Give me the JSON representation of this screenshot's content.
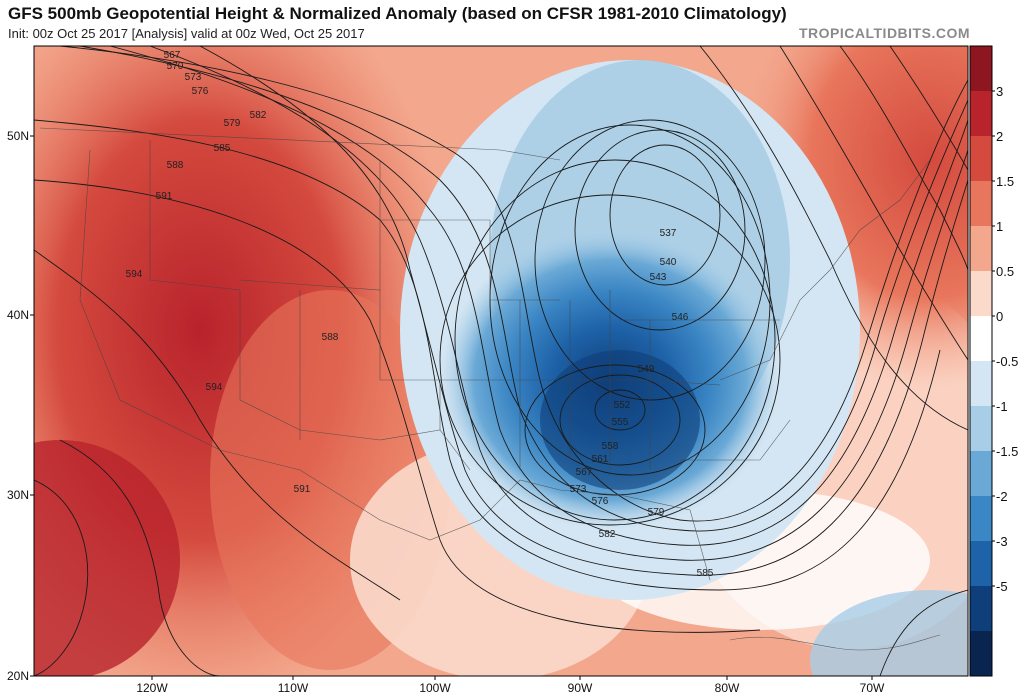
{
  "header": {
    "title": "GFS 500mb Geopotential Height & Normalized Anomaly (based on CFSR 1981-2010 Climatology)",
    "subtitle": "Init: 00z Oct 25 2017   [Analysis]   valid at 00z Wed, Oct 25 2017",
    "brand": "TROPICALTIDBITS.COM"
  },
  "axes": {
    "lat_labels": [
      "50N",
      "40N",
      "30N",
      "20N"
    ],
    "lon_labels": [
      "120W",
      "110W",
      "100W",
      "90W",
      "80W",
      "70W"
    ]
  },
  "colorbar": {
    "labels": [
      "3",
      "2",
      "1.5",
      "1",
      "0.5",
      "0",
      "-0.5",
      "-1",
      "-1.5",
      "-2",
      "-3",
      "-5"
    ],
    "colors": [
      "#8e1621",
      "#b8232c",
      "#d44a3e",
      "#e8765c",
      "#f3a88e",
      "#fbd9cb",
      "#ffffff",
      "#d4e6f3",
      "#a8cde6",
      "#6aa9d6",
      "#3b86c4",
      "#1e62a8",
      "#0f3f7a",
      "#0a2450"
    ]
  },
  "contours": {
    "labels": [
      "567",
      "570",
      "573",
      "576",
      "579",
      "582",
      "585",
      "588",
      "591",
      "594",
      "588",
      "594",
      "591",
      "537",
      "540",
      "543",
      "546",
      "549",
      "552",
      "555",
      "558",
      "561",
      "567",
      "573",
      "576",
      "579",
      "582",
      "585"
    ]
  }
}
